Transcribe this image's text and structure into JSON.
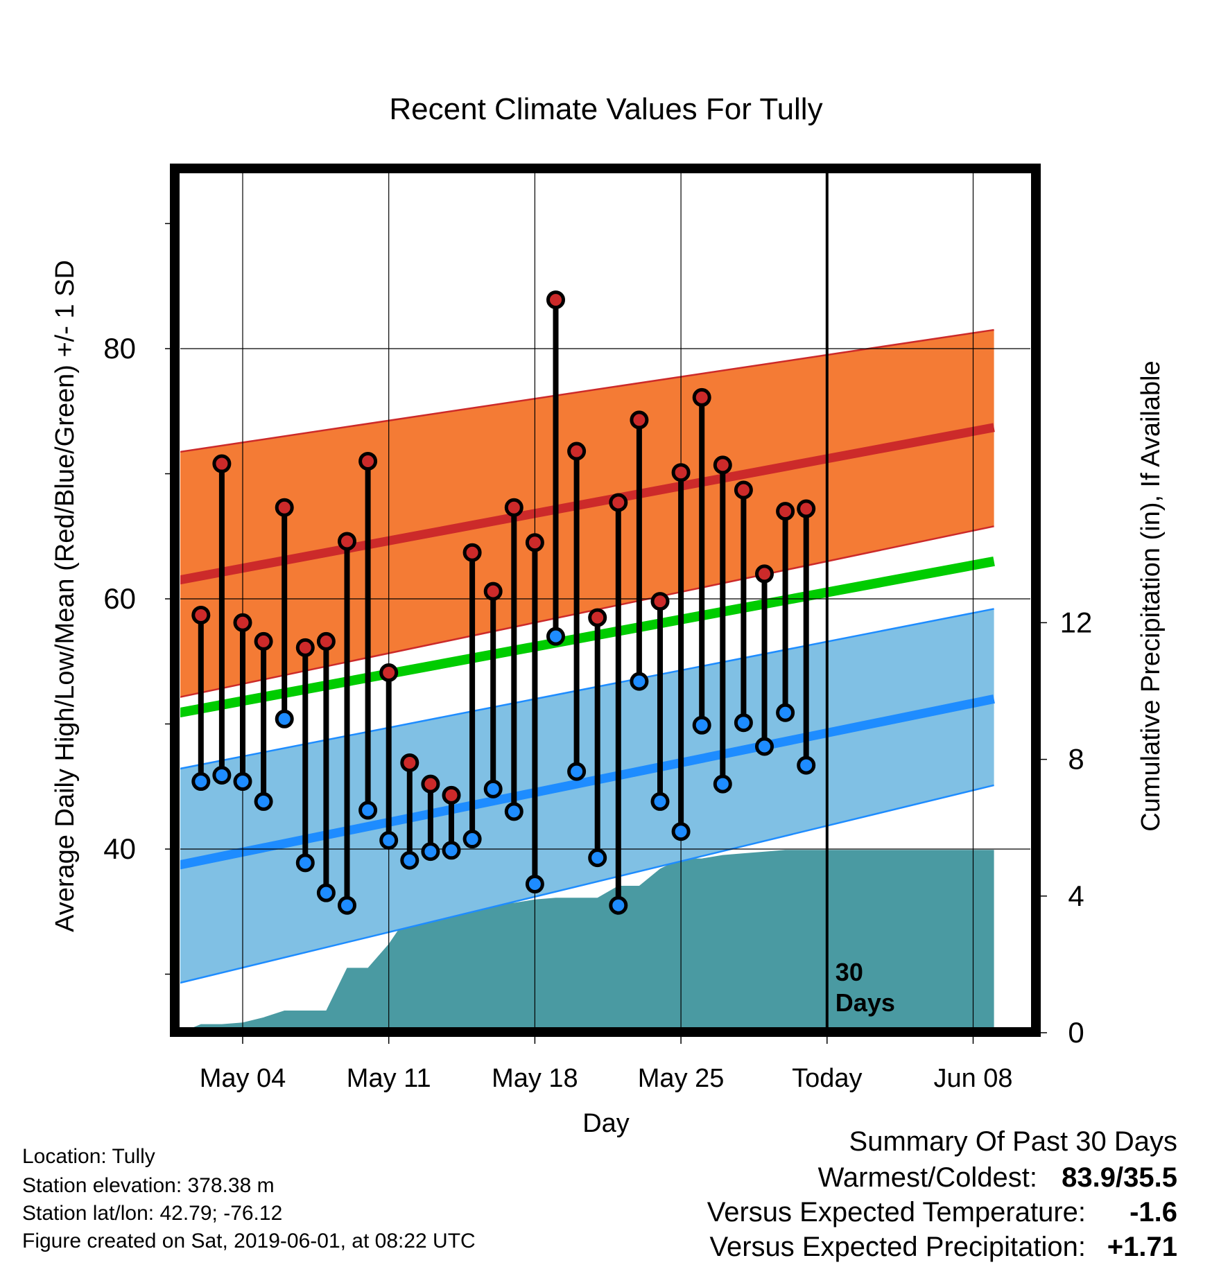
{
  "title": "Recent Climate Values For Tully",
  "chart_data": {
    "type": "line",
    "title": "Recent Climate Values For Tully",
    "xlabel": "Day",
    "ylabel": "Average Daily High/Low/Mean (Red/Blue/Green) +/- 1 SD",
    "ylabel_right": "Cumulative Precipitation (in), If Available",
    "x_tick_labels": [
      "May 04",
      "May 11",
      "May 18",
      "May 25",
      "Today",
      "Jun 08"
    ],
    "y_ticks": [
      40,
      60,
      80
    ],
    "y_right_ticks": [
      0,
      4,
      8,
      12
    ],
    "today_marker_label": "30\nDays",
    "days": [
      "May 02",
      "May 03",
      "May 04",
      "May 05",
      "May 06",
      "May 07",
      "May 08",
      "May 09",
      "May 10",
      "May 11",
      "May 12",
      "May 13",
      "May 14",
      "May 15",
      "May 16",
      "May 17",
      "May 18",
      "May 19",
      "May 20",
      "May 21",
      "May 22",
      "May 23",
      "May 24",
      "May 25",
      "May 26",
      "May 27",
      "May 28",
      "May 29",
      "May 30",
      "May 31"
    ],
    "observed_high": [
      58.7,
      70.8,
      58.1,
      56.6,
      67.3,
      56.1,
      56.6,
      64.6,
      71.0,
      54.1,
      46.9,
      45.2,
      44.3,
      63.7,
      60.6,
      67.3,
      64.5,
      83.9,
      71.8,
      58.5,
      67.7,
      74.3,
      59.8,
      70.1,
      76.1,
      70.7,
      68.7,
      62.0,
      67.0,
      67.2
    ],
    "observed_low": [
      45.4,
      45.9,
      45.4,
      43.8,
      50.4,
      38.9,
      36.5,
      35.5,
      43.1,
      40.7,
      39.1,
      39.8,
      39.9,
      40.8,
      44.8,
      43.0,
      37.2,
      57.0,
      46.2,
      39.3,
      35.5,
      53.4,
      43.8,
      41.4,
      49.9,
      45.2,
      50.1,
      48.2,
      50.9,
      46.7
    ],
    "normal_x_days": [
      "Apr 30",
      "Jun 09"
    ],
    "normal_high_mean": [
      61.2,
      73.7
    ],
    "normal_high_upper": [
      71.5,
      81.5
    ],
    "normal_high_lower": [
      51.8,
      65.8
    ],
    "normal_mean": [
      50.6,
      63.0
    ],
    "normal_low_mean": [
      38.4,
      52.0
    ],
    "normal_low_upper": [
      46.1,
      59.2
    ],
    "normal_low_lower": [
      28.9,
      45.1
    ],
    "cumulative_precip_days": [
      "Apr 30",
      "May 01",
      "May 02",
      "May 03",
      "May 04",
      "May 05",
      "May 06",
      "May 07",
      "May 08",
      "May 09",
      "May 10",
      "May 11",
      "May 12",
      "May 13",
      "May 14",
      "May 15",
      "May 16",
      "May 17",
      "May 18",
      "May 19",
      "May 20",
      "May 21",
      "May 22",
      "May 23",
      "May 24",
      "May 25",
      "May 26",
      "May 27",
      "May 28",
      "May 29",
      "May 30",
      "May 31",
      "Jun 09"
    ],
    "cumulative_precip": [
      0,
      0,
      0.25,
      0.25,
      0.3,
      0.45,
      0.65,
      0.65,
      0.65,
      1.9,
      1.9,
      2.6,
      3.5,
      3.7,
      3.7,
      3.75,
      3.8,
      3.8,
      3.9,
      3.95,
      3.95,
      3.95,
      4.3,
      4.3,
      4.8,
      5.1,
      5.1,
      5.2,
      5.25,
      5.3,
      5.35,
      5.35,
      5.35
    ],
    "colors": {
      "high_band": "#f47b35",
      "high_line": "#cc2a2a",
      "low_band": "#80c0e4",
      "low_line": "#1e8cff",
      "mean_line": "#00cc00",
      "precip": "#4a9aa2",
      "high_dot": "#cc2a2a",
      "low_dot": "#1e8cff"
    }
  },
  "info": {
    "location": "Location: Tully",
    "elevation": "Station elevation: 378.38 m",
    "latlon": "Station lat/lon: 42.79; -76.12",
    "created": "Figure created on Sat, 2019-06-01, at 08:22 UTC"
  },
  "summary": {
    "heading": "Summary Of Past 30 Days",
    "warmest_label": "Warmest/Coldest:",
    "warmest_value": "83.9/35.5",
    "temp_label": "Versus Expected Temperature:",
    "temp_value": "-1.6",
    "temp_color": "#1e8cff",
    "precip_label": "Versus Expected Precipitation:",
    "precip_value": "+1.71",
    "precip_color": "#00bb00"
  }
}
